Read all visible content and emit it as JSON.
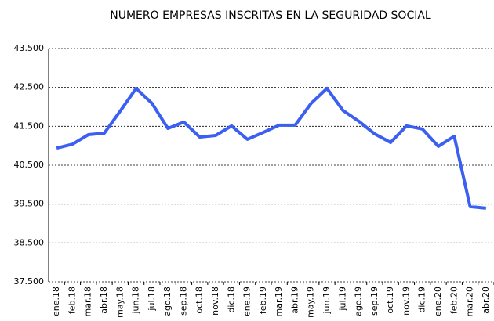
{
  "chart_data": {
    "type": "line",
    "title": "NUMERO EMPRESAS INSCRITAS EN LA SEGURIDAD SOCIAL",
    "categories": [
      "ene.18",
      "feb.18",
      "mar.18",
      "abr.18",
      "may.18",
      "jun.18",
      "jul.18",
      "ago.18",
      "sep.18",
      "oct.18",
      "nov.18",
      "dic.18",
      "ene.19",
      "feb.19",
      "mar.19",
      "abr.19",
      "may.19",
      "jun.19",
      "jul.19",
      "ago.19",
      "sep.19",
      "oct.19",
      "nov.19",
      "dic.19",
      "ene.20",
      "feb.20",
      "mar.20",
      "abr.20"
    ],
    "series": [
      {
        "color": "#3b5ff0",
        "values": [
          40940,
          41040,
          41285,
          41325,
          41890,
          42475,
          42090,
          41445,
          41610,
          41225,
          41265,
          41510,
          41165,
          41345,
          41530,
          41530,
          42090,
          42475,
          41910,
          41630,
          41305,
          41085,
          41510,
          41430,
          40985,
          41245,
          39435,
          39395
        ]
      }
    ],
    "ylim": [
      37500,
      43500
    ],
    "yticks": [
      {
        "value": 37500,
        "label": "37.500"
      },
      {
        "value": 38500,
        "label": "38.500"
      },
      {
        "value": 39500,
        "label": "39.500"
      },
      {
        "value": 40500,
        "label": "40.500"
      },
      {
        "value": 41500,
        "label": "41.500"
      },
      {
        "value": 42500,
        "label": "42.500"
      },
      {
        "value": 43500,
        "label": "43.500"
      }
    ],
    "grid": true
  }
}
